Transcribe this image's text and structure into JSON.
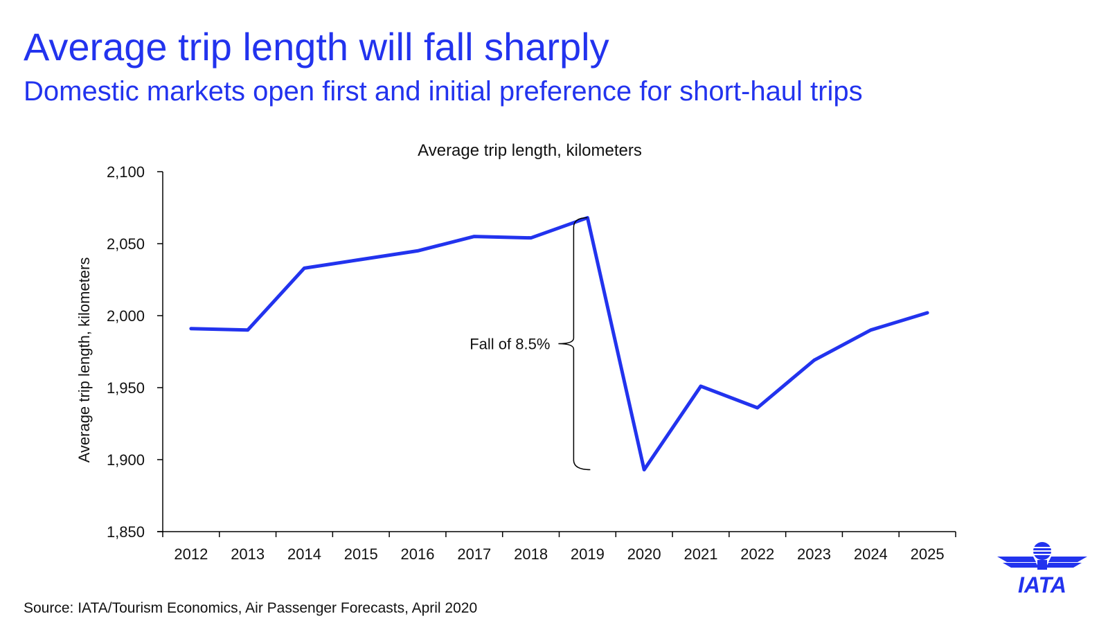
{
  "header": {
    "title": "Average trip length will fall sharply",
    "subtitle": "Domestic markets open first and initial preference for short-haul trips"
  },
  "footer": {
    "source": "Source: IATA/Tourism Economics, Air Passenger Forecasts, April 2020"
  },
  "logo": {
    "text": "IATA",
    "icon": "iata-globe-wings-icon"
  },
  "colors": {
    "accent": "#2233ee",
    "line": "#2233ee",
    "text": "#111111"
  },
  "chart_data": {
    "type": "line",
    "title": "Average trip length, kilometers",
    "xlabel": "",
    "ylabel": "Average trip length, kilometers",
    "ylim": [
      1850,
      2100
    ],
    "yticks": [
      1850,
      1900,
      1950,
      2000,
      2050,
      2100
    ],
    "ytick_labels": [
      "1,850",
      "1,900",
      "1,950",
      "2,000",
      "2,050",
      "2,100"
    ],
    "categories": [
      "2012",
      "2013",
      "2014",
      "2015",
      "2016",
      "2017",
      "2018",
      "2019",
      "2020",
      "2021",
      "2022",
      "2023",
      "2024",
      "2025"
    ],
    "series": [
      {
        "name": "Average trip length",
        "values": [
          1991,
          1990,
          2033,
          2039,
          2045,
          2055,
          2054,
          2068,
          1893,
          1951,
          1936,
          1969,
          1990,
          2002
        ]
      }
    ],
    "grid": false,
    "legend": "none",
    "annotations": [
      {
        "text": "Fall of 8.5%",
        "from_category": "2019",
        "from_value": 2068,
        "to_value": 1893
      }
    ]
  }
}
